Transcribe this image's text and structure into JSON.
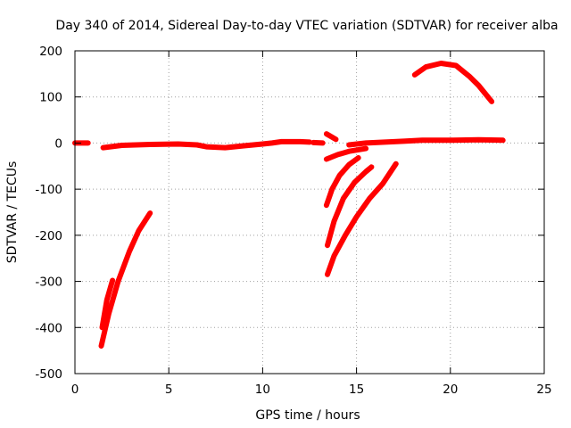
{
  "chart_data": {
    "type": "scatter",
    "title": "Day 340 of 2014, Sidereal Day-to-day VTEC variation (SDTVAR) for receiver alba",
    "xlabel": "GPS time / hours",
    "ylabel": "SDTVAR / TECUs",
    "xlim": [
      0,
      25
    ],
    "ylim": [
      -500,
      200
    ],
    "xticks": [
      0,
      5,
      10,
      15,
      20,
      25
    ],
    "yticks": [
      -500,
      -400,
      -300,
      -200,
      -100,
      0,
      100,
      200
    ],
    "grid": true,
    "color": "#ff0000",
    "series": [
      {
        "values": [
          [
            0.0,
            0
          ],
          [
            0.7,
            0
          ]
        ]
      },
      {
        "values": [
          [
            1.5,
            -10
          ],
          [
            2.5,
            -5
          ],
          [
            4,
            -3
          ],
          [
            5.5,
            -2
          ],
          [
            6.5,
            -4
          ],
          [
            7.0,
            -8
          ],
          [
            8.0,
            -10
          ],
          [
            9.0,
            -6
          ],
          [
            10.0,
            -2
          ],
          [
            10.5,
            0
          ],
          [
            11.0,
            3
          ],
          [
            12.0,
            3
          ],
          [
            12.5,
            2
          ]
        ]
      },
      {
        "values": [
          [
            12.7,
            1
          ],
          [
            13.2,
            0
          ]
        ]
      },
      {
        "values": [
          [
            13.4,
            20
          ],
          [
            13.9,
            8
          ]
        ]
      },
      {
        "values": [
          [
            14.6,
            -4
          ],
          [
            15.5,
            0
          ],
          [
            16.5,
            2
          ],
          [
            17.5,
            4
          ],
          [
            18.5,
            6
          ],
          [
            20,
            6
          ],
          [
            21.5,
            7
          ],
          [
            22.8,
            6
          ]
        ]
      },
      {
        "values": [
          [
            13.4,
            -35
          ],
          [
            14.0,
            -25
          ],
          [
            14.6,
            -18
          ],
          [
            15.5,
            -12
          ]
        ]
      },
      {
        "values": [
          [
            18.1,
            148
          ],
          [
            18.7,
            165
          ],
          [
            19.5,
            173
          ],
          [
            20.3,
            168
          ],
          [
            21.0,
            145
          ],
          [
            21.5,
            125
          ],
          [
            22.2,
            90
          ]
        ]
      },
      {
        "values": [
          [
            1.4,
            -440
          ],
          [
            1.8,
            -370
          ],
          [
            2.3,
            -300
          ],
          [
            2.9,
            -235
          ],
          [
            3.4,
            -190
          ],
          [
            4.0,
            -152
          ]
        ]
      },
      {
        "values": [
          [
            1.45,
            -400
          ],
          [
            1.7,
            -340
          ],
          [
            2.0,
            -298
          ]
        ]
      },
      {
        "values": [
          [
            13.4,
            -135
          ],
          [
            13.7,
            -100
          ],
          [
            14.1,
            -70
          ],
          [
            14.6,
            -47
          ],
          [
            15.1,
            -32
          ]
        ]
      },
      {
        "values": [
          [
            13.45,
            -222
          ],
          [
            13.8,
            -170
          ],
          [
            14.3,
            -120
          ],
          [
            14.9,
            -85
          ],
          [
            15.5,
            -62
          ],
          [
            15.8,
            -52
          ]
        ]
      },
      {
        "values": [
          [
            13.45,
            -285
          ],
          [
            13.8,
            -245
          ],
          [
            14.4,
            -200
          ],
          [
            15.0,
            -160
          ],
          [
            15.7,
            -120
          ],
          [
            16.4,
            -88
          ],
          [
            17.1,
            -45
          ]
        ]
      }
    ]
  }
}
